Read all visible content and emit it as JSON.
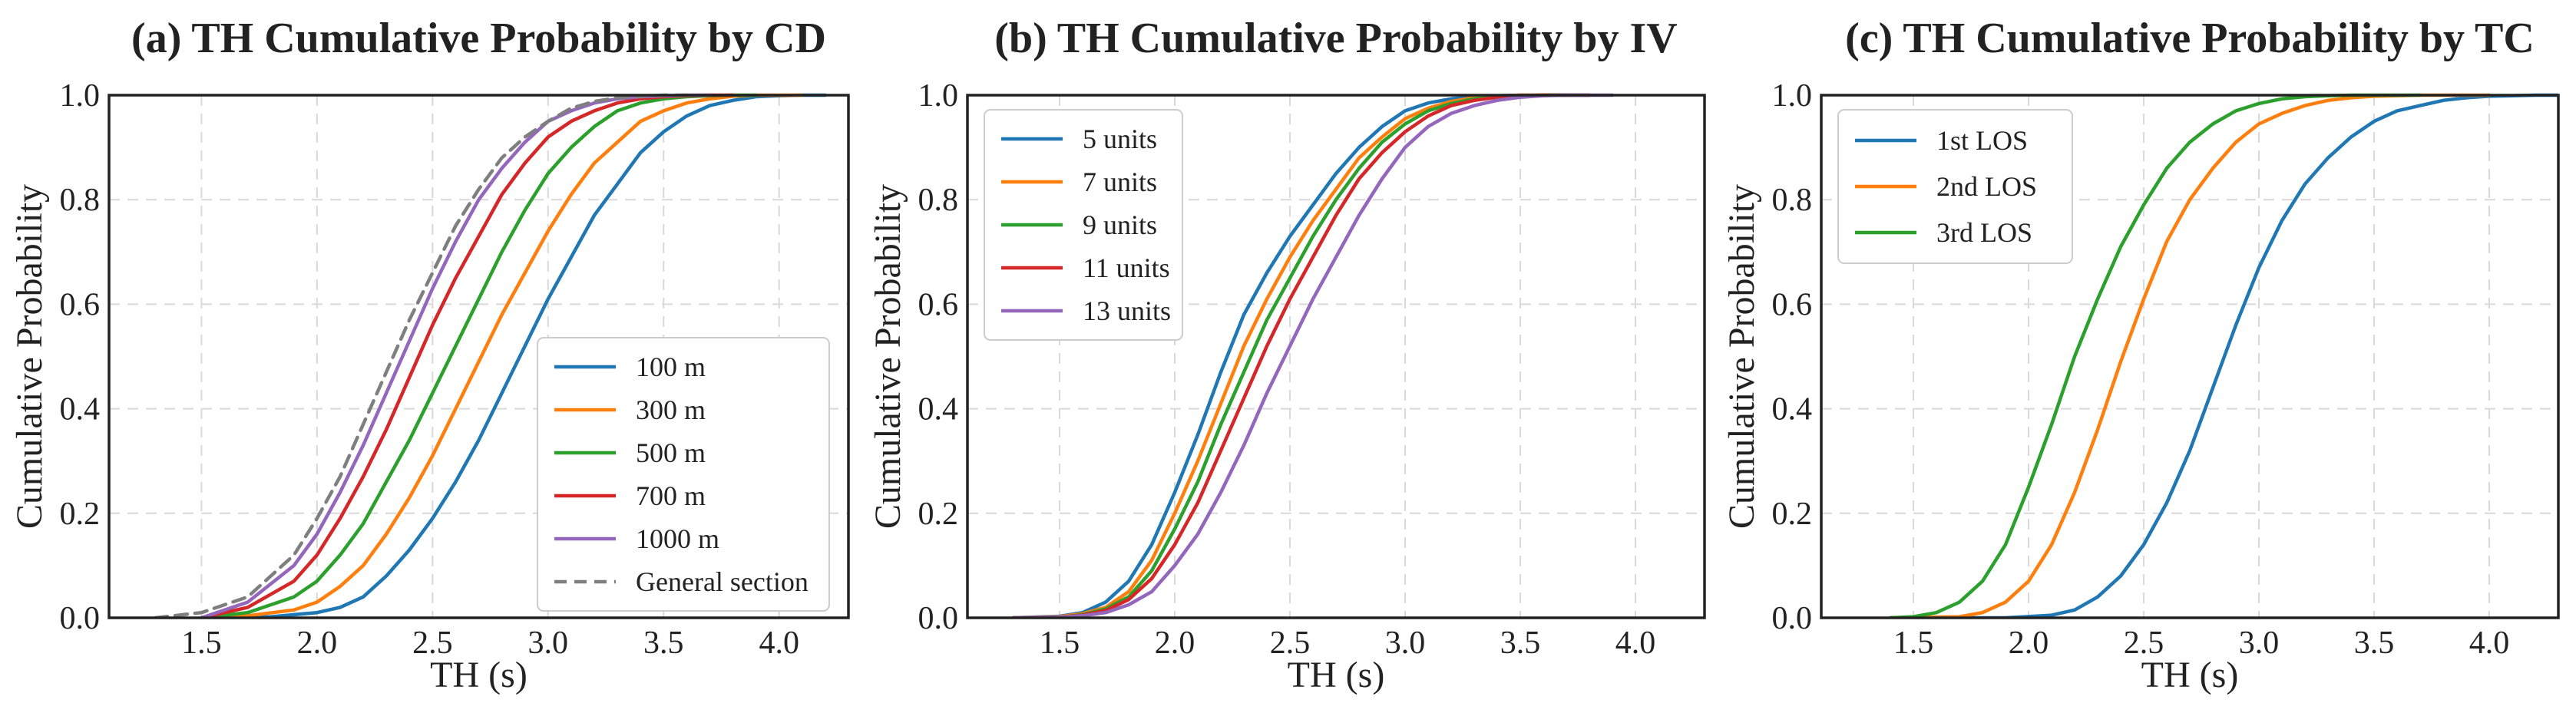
{
  "chart_data": [
    {
      "type": "line",
      "title": "(a) TH Cumulative Probability by CD",
      "xlabel": "TH (s)",
      "ylabel": "Cumulative Probability",
      "xlim": [
        1.1,
        4.3
      ],
      "ylim": [
        0.0,
        1.0
      ],
      "xticks": [
        1.5,
        2.0,
        2.5,
        3.0,
        3.5,
        4.0
      ],
      "xtick_labels": [
        "1.5",
        "2.0",
        "2.5",
        "3.0",
        "3.5",
        "4.0"
      ],
      "yticks": [
        0.0,
        0.2,
        0.4,
        0.6,
        0.8,
        1.0
      ],
      "ytick_labels": [
        "0.0",
        "0.2",
        "0.4",
        "0.6",
        "0.8",
        "1.0"
      ],
      "grid": true,
      "legend_position": "lower-right",
      "series": [
        {
          "name": "100 m",
          "color": "#1f77b4",
          "dash": false,
          "x": [
            1.6,
            1.8,
            2.0,
            2.1,
            2.2,
            2.3,
            2.4,
            2.5,
            2.6,
            2.7,
            2.8,
            2.9,
            3.0,
            3.1,
            3.2,
            3.3,
            3.4,
            3.5,
            3.6,
            3.7,
            3.8,
            3.9,
            4.0,
            4.1,
            4.2
          ],
          "y": [
            0.0,
            0.002,
            0.01,
            0.02,
            0.04,
            0.08,
            0.13,
            0.19,
            0.26,
            0.34,
            0.43,
            0.52,
            0.61,
            0.69,
            0.77,
            0.83,
            0.89,
            0.93,
            0.96,
            0.98,
            0.99,
            0.997,
            0.999,
            1.0,
            1.0
          ]
        },
        {
          "name": "300 m",
          "color": "#ff7f0e",
          "dash": false,
          "x": [
            1.5,
            1.7,
            1.9,
            2.0,
            2.1,
            2.2,
            2.3,
            2.4,
            2.5,
            2.6,
            2.7,
            2.8,
            2.9,
            3.0,
            3.1,
            3.2,
            3.3,
            3.4,
            3.5,
            3.6,
            3.7,
            3.8,
            3.9,
            4.0,
            4.1
          ],
          "y": [
            0.0,
            0.004,
            0.015,
            0.03,
            0.06,
            0.1,
            0.16,
            0.23,
            0.31,
            0.4,
            0.49,
            0.58,
            0.66,
            0.74,
            0.81,
            0.87,
            0.91,
            0.95,
            0.97,
            0.985,
            0.993,
            0.998,
            1.0,
            1.0,
            1.0
          ]
        },
        {
          "name": "500 m",
          "color": "#2ca02c",
          "dash": false,
          "x": [
            1.5,
            1.7,
            1.9,
            2.0,
            2.1,
            2.2,
            2.3,
            2.4,
            2.5,
            2.6,
            2.7,
            2.8,
            2.9,
            3.0,
            3.1,
            3.2,
            3.3,
            3.4,
            3.5,
            3.6,
            3.7,
            3.8,
            3.9
          ],
          "y": [
            0.0,
            0.01,
            0.04,
            0.07,
            0.12,
            0.18,
            0.26,
            0.34,
            0.43,
            0.52,
            0.61,
            0.7,
            0.78,
            0.85,
            0.9,
            0.94,
            0.97,
            0.985,
            0.993,
            0.997,
            0.999,
            1.0,
            1.0
          ]
        },
        {
          "name": "700 m",
          "color": "#d62728",
          "dash": false,
          "x": [
            1.5,
            1.7,
            1.9,
            2.0,
            2.1,
            2.2,
            2.3,
            2.4,
            2.5,
            2.6,
            2.7,
            2.8,
            2.9,
            3.0,
            3.1,
            3.2,
            3.3,
            3.4,
            3.5,
            3.6,
            3.7,
            3.8
          ],
          "y": [
            0.0,
            0.02,
            0.07,
            0.12,
            0.19,
            0.27,
            0.36,
            0.46,
            0.56,
            0.65,
            0.73,
            0.81,
            0.87,
            0.92,
            0.95,
            0.97,
            0.985,
            0.993,
            0.997,
            0.999,
            1.0,
            1.0
          ]
        },
        {
          "name": "1000 m",
          "color": "#9467bd",
          "dash": false,
          "x": [
            1.5,
            1.7,
            1.9,
            2.0,
            2.1,
            2.2,
            2.3,
            2.4,
            2.5,
            2.6,
            2.7,
            2.8,
            2.9,
            3.0,
            3.1,
            3.2,
            3.3,
            3.4,
            3.5,
            3.6,
            3.7
          ],
          "y": [
            0.0,
            0.03,
            0.1,
            0.16,
            0.24,
            0.33,
            0.43,
            0.53,
            0.63,
            0.72,
            0.8,
            0.86,
            0.91,
            0.95,
            0.97,
            0.985,
            0.993,
            0.997,
            0.999,
            1.0,
            1.0
          ]
        },
        {
          "name": "General section",
          "color": "#7f7f7f",
          "dash": true,
          "x": [
            1.3,
            1.5,
            1.7,
            1.9,
            2.0,
            2.1,
            2.2,
            2.3,
            2.4,
            2.5,
            2.6,
            2.7,
            2.8,
            2.9,
            3.0,
            3.1,
            3.2,
            3.3,
            3.4,
            3.5,
            3.6
          ],
          "y": [
            0.0,
            0.01,
            0.04,
            0.12,
            0.19,
            0.27,
            0.37,
            0.47,
            0.57,
            0.66,
            0.75,
            0.82,
            0.88,
            0.92,
            0.95,
            0.975,
            0.988,
            0.995,
            0.998,
            1.0,
            1.0
          ]
        }
      ]
    },
    {
      "type": "line",
      "title": "(b) TH Cumulative Probability by IV",
      "xlabel": "TH (s)",
      "ylabel": "Cumulative Probability",
      "xlim": [
        1.1,
        4.3
      ],
      "ylim": [
        0.0,
        1.0
      ],
      "xticks": [
        1.5,
        2.0,
        2.5,
        3.0,
        3.5,
        4.0
      ],
      "xtick_labels": [
        "1.5",
        "2.0",
        "2.5",
        "3.0",
        "3.5",
        "4.0"
      ],
      "yticks": [
        0.0,
        0.2,
        0.4,
        0.6,
        0.8,
        1.0
      ],
      "ytick_labels": [
        "0.0",
        "0.2",
        "0.4",
        "0.6",
        "0.8",
        "1.0"
      ],
      "grid": true,
      "legend_position": "upper-left",
      "series": [
        {
          "name": "5 units",
          "color": "#1f77b4",
          "dash": false,
          "x": [
            1.3,
            1.5,
            1.6,
            1.7,
            1.8,
            1.9,
            2.0,
            2.1,
            2.2,
            2.3,
            2.4,
            2.5,
            2.6,
            2.7,
            2.8,
            2.9,
            3.0,
            3.1,
            3.2,
            3.3,
            3.4,
            3.5,
            3.6,
            3.7
          ],
          "y": [
            0.0,
            0.003,
            0.01,
            0.03,
            0.07,
            0.14,
            0.24,
            0.35,
            0.47,
            0.58,
            0.66,
            0.73,
            0.79,
            0.85,
            0.9,
            0.94,
            0.97,
            0.985,
            0.993,
            0.997,
            0.999,
            1.0,
            1.0,
            1.0
          ]
        },
        {
          "name": "7 units",
          "color": "#ff7f0e",
          "dash": false,
          "x": [
            1.3,
            1.5,
            1.6,
            1.7,
            1.8,
            1.9,
            2.0,
            2.1,
            2.2,
            2.3,
            2.4,
            2.5,
            2.6,
            2.7,
            2.8,
            2.9,
            3.0,
            3.1,
            3.2,
            3.3,
            3.4,
            3.5,
            3.6,
            3.7
          ],
          "y": [
            0.0,
            0.002,
            0.008,
            0.02,
            0.05,
            0.11,
            0.2,
            0.3,
            0.41,
            0.52,
            0.61,
            0.69,
            0.76,
            0.82,
            0.88,
            0.92,
            0.955,
            0.975,
            0.988,
            0.995,
            0.998,
            1.0,
            1.0,
            1.0
          ]
        },
        {
          "name": "9 units",
          "color": "#2ca02c",
          "dash": false,
          "x": [
            1.3,
            1.5,
            1.6,
            1.7,
            1.8,
            1.9,
            2.0,
            2.1,
            2.2,
            2.3,
            2.4,
            2.5,
            2.6,
            2.7,
            2.8,
            2.9,
            3.0,
            3.1,
            3.2,
            3.3,
            3.4,
            3.5,
            3.6,
            3.7,
            3.8
          ],
          "y": [
            0.0,
            0.001,
            0.006,
            0.017,
            0.04,
            0.09,
            0.17,
            0.26,
            0.37,
            0.47,
            0.57,
            0.65,
            0.73,
            0.8,
            0.86,
            0.91,
            0.945,
            0.97,
            0.984,
            0.993,
            0.997,
            0.999,
            1.0,
            1.0,
            1.0
          ]
        },
        {
          "name": "11 units",
          "color": "#d62728",
          "dash": false,
          "x": [
            1.3,
            1.5,
            1.6,
            1.7,
            1.8,
            1.9,
            2.0,
            2.1,
            2.2,
            2.3,
            2.4,
            2.5,
            2.6,
            2.7,
            2.8,
            2.9,
            3.0,
            3.1,
            3.2,
            3.3,
            3.4,
            3.5,
            3.6,
            3.7,
            3.8
          ],
          "y": [
            0.0,
            0.001,
            0.005,
            0.014,
            0.035,
            0.075,
            0.14,
            0.22,
            0.32,
            0.42,
            0.52,
            0.61,
            0.69,
            0.77,
            0.84,
            0.89,
            0.93,
            0.96,
            0.98,
            0.99,
            0.996,
            0.999,
            1.0,
            1.0,
            1.0
          ]
        },
        {
          "name": "13 units",
          "color": "#9467bd",
          "dash": false,
          "x": [
            1.3,
            1.5,
            1.6,
            1.7,
            1.8,
            1.9,
            2.0,
            2.1,
            2.2,
            2.3,
            2.4,
            2.5,
            2.6,
            2.7,
            2.8,
            2.9,
            3.0,
            3.1,
            3.2,
            3.3,
            3.4,
            3.5,
            3.6,
            3.7,
            3.8,
            3.9
          ],
          "y": [
            0.0,
            0.001,
            0.004,
            0.01,
            0.025,
            0.05,
            0.1,
            0.16,
            0.24,
            0.33,
            0.43,
            0.52,
            0.61,
            0.69,
            0.77,
            0.84,
            0.9,
            0.94,
            0.965,
            0.98,
            0.99,
            0.996,
            0.999,
            1.0,
            1.0,
            1.0
          ]
        }
      ]
    },
    {
      "type": "line",
      "title": "(c) TH Cumulative Probability by TC",
      "xlabel": "TH (s)",
      "ylabel": "Cumulative Probability",
      "xlim": [
        1.1,
        4.3
      ],
      "ylim": [
        0.0,
        1.0
      ],
      "xticks": [
        1.5,
        2.0,
        2.5,
        3.0,
        3.5,
        4.0
      ],
      "xtick_labels": [
        "1.5",
        "2.0",
        "2.5",
        "3.0",
        "3.5",
        "4.0"
      ],
      "yticks": [
        0.0,
        0.2,
        0.4,
        0.6,
        0.8,
        1.0
      ],
      "ytick_labels": [
        "0.0",
        "0.2",
        "0.4",
        "0.6",
        "0.8",
        "1.0"
      ],
      "grid": true,
      "legend_position": "upper-left",
      "series": [
        {
          "name": "1st LOS",
          "color": "#1f77b4",
          "dash": false,
          "x": [
            1.4,
            1.9,
            2.1,
            2.2,
            2.3,
            2.4,
            2.5,
            2.6,
            2.7,
            2.8,
            2.9,
            3.0,
            3.1,
            3.2,
            3.3,
            3.4,
            3.5,
            3.6,
            3.7,
            3.8,
            3.9,
            4.0,
            4.1,
            4.2,
            4.3
          ],
          "y": [
            0.0,
            0.0,
            0.005,
            0.015,
            0.04,
            0.08,
            0.14,
            0.22,
            0.32,
            0.44,
            0.56,
            0.67,
            0.76,
            0.83,
            0.88,
            0.92,
            0.95,
            0.97,
            0.98,
            0.99,
            0.995,
            0.998,
            0.999,
            1.0,
            1.0
          ]
        },
        {
          "name": "2nd LOS",
          "color": "#ff7f0e",
          "dash": false,
          "x": [
            1.4,
            1.7,
            1.8,
            1.9,
            2.0,
            2.1,
            2.2,
            2.3,
            2.4,
            2.5,
            2.6,
            2.7,
            2.8,
            2.9,
            3.0,
            3.1,
            3.2,
            3.3,
            3.4,
            3.5,
            3.6,
            3.7,
            3.8,
            3.9,
            4.0
          ],
          "y": [
            0.0,
            0.002,
            0.01,
            0.03,
            0.07,
            0.14,
            0.24,
            0.36,
            0.49,
            0.61,
            0.72,
            0.8,
            0.86,
            0.91,
            0.945,
            0.965,
            0.98,
            0.99,
            0.995,
            0.998,
            0.999,
            1.0,
            1.0,
            1.0,
            1.0
          ]
        },
        {
          "name": "3rd LOS",
          "color": "#2ca02c",
          "dash": false,
          "x": [
            1.4,
            1.5,
            1.6,
            1.7,
            1.8,
            1.9,
            2.0,
            2.1,
            2.2,
            2.3,
            2.4,
            2.5,
            2.6,
            2.7,
            2.8,
            2.9,
            3.0,
            3.1,
            3.2,
            3.3,
            3.4,
            3.5,
            3.6,
            3.7
          ],
          "y": [
            0.0,
            0.002,
            0.01,
            0.03,
            0.07,
            0.14,
            0.25,
            0.37,
            0.5,
            0.61,
            0.71,
            0.79,
            0.86,
            0.91,
            0.945,
            0.97,
            0.984,
            0.993,
            0.997,
            0.999,
            1.0,
            1.0,
            1.0,
            1.0
          ]
        }
      ]
    }
  ]
}
